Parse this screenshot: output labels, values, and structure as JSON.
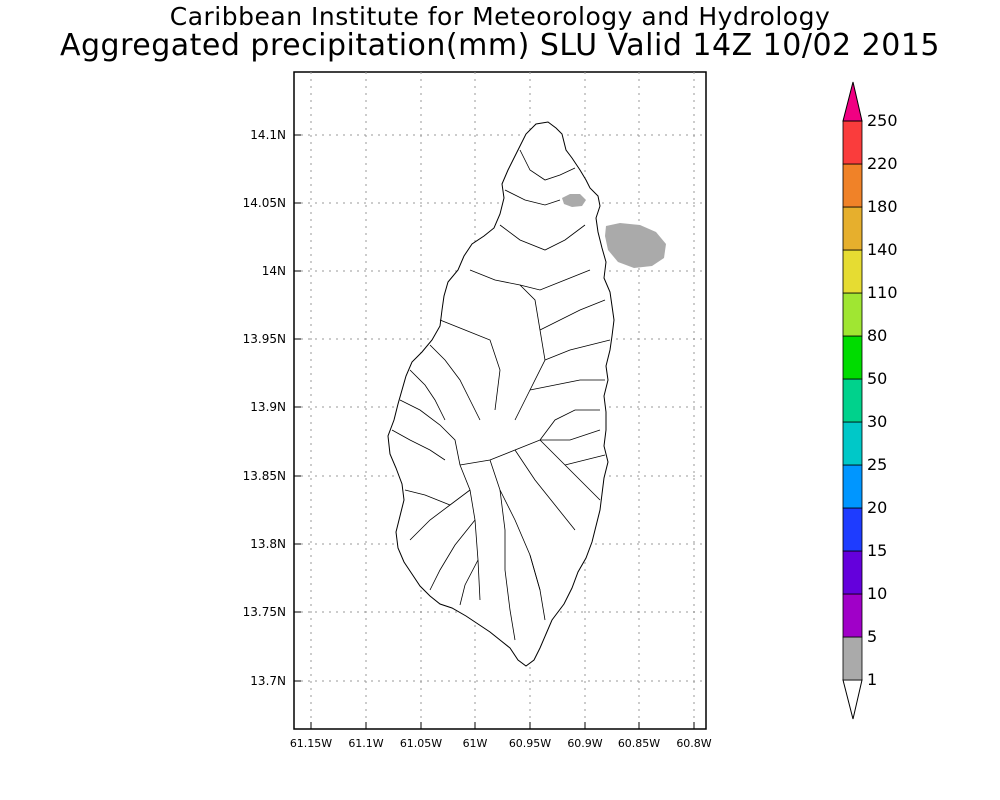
{
  "header": {
    "line1": "Caribbean Institute for Meteorology and Hydrology",
    "line2": "Aggregated precipitation(mm) SLU Valid 14Z 10/02 2015"
  },
  "map": {
    "lat_labels": [
      "14.1N",
      "14.05N",
      "14N",
      "13.95N",
      "13.9N",
      "13.85N",
      "13.8N",
      "13.75N",
      "13.7N"
    ],
    "lon_labels": [
      "61.15W",
      "61.1W",
      "61.05W",
      "61W",
      "60.95W",
      "60.9W",
      "60.85W",
      "60.8W"
    ],
    "precip_patches": [
      {
        "label": "1-5 mm small patch",
        "color": "#aaaaaa"
      },
      {
        "label": "1-5 mm east patch",
        "color": "#aaaaaa"
      }
    ]
  },
  "legend": {
    "levels": [
      "1",
      "5",
      "10",
      "15",
      "20",
      "25",
      "30",
      "50",
      "80",
      "110",
      "140",
      "180",
      "220",
      "250"
    ],
    "colors": [
      "#ffffff",
      "#aaaaaa",
      "#a000c8",
      "#6400dc",
      "#1e3cff",
      "#0096ff",
      "#00c8c8",
      "#00d28c",
      "#00dc00",
      "#a0e632",
      "#e6dc32",
      "#e6af2d",
      "#f08228",
      "#fa3c3c",
      "#f00082"
    ]
  }
}
